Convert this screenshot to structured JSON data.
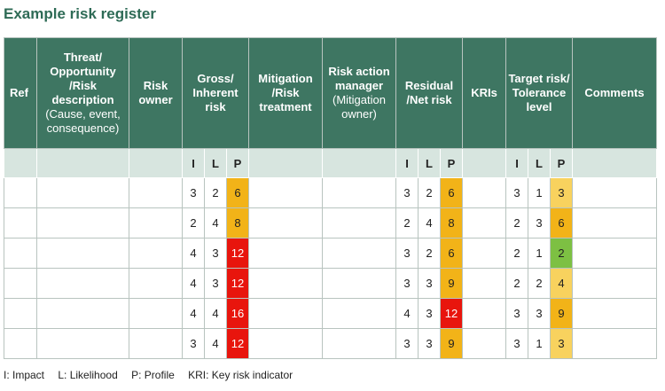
{
  "title": "Example risk register",
  "headers": {
    "ref": "Ref",
    "threat_bold": "Threat/ Opportunity /Risk description",
    "threat_light": "(Cause, event, consequence)",
    "owner": "Risk owner",
    "gross": "Gross/ Inherent risk",
    "mitigation": "Mitigation /Risk treatment",
    "manager_bold": "Risk action manager",
    "manager_light": "(Mitigation owner)",
    "residual": "Residual /Net risk",
    "kris": "KRIs",
    "target": "Target risk/ Tolerance level",
    "comments": "Comments"
  },
  "sub_labels": {
    "i": "I",
    "l": "L",
    "p": "P"
  },
  "rows": [
    {
      "gross": [
        "3",
        "2",
        "6"
      ],
      "residual": [
        "3",
        "2",
        "6"
      ],
      "target": [
        "3",
        "1",
        "3"
      ]
    },
    {
      "gross": [
        "2",
        "4",
        "8"
      ],
      "residual": [
        "2",
        "4",
        "8"
      ],
      "target": [
        "2",
        "3",
        "6"
      ]
    },
    {
      "gross": [
        "4",
        "3",
        "12"
      ],
      "residual": [
        "3",
        "2",
        "6"
      ],
      "target": [
        "2",
        "1",
        "2"
      ]
    },
    {
      "gross": [
        "4",
        "3",
        "12"
      ],
      "residual": [
        "3",
        "3",
        "9"
      ],
      "target": [
        "2",
        "2",
        "4"
      ]
    },
    {
      "gross": [
        "4",
        "4",
        "16"
      ],
      "residual": [
        "4",
        "3",
        "12"
      ],
      "target": [
        "3",
        "3",
        "9"
      ]
    },
    {
      "gross": [
        "3",
        "4",
        "12"
      ],
      "residual": [
        "3",
        "3",
        "9"
      ],
      "target": [
        "3",
        "1",
        "3"
      ]
    }
  ],
  "colors": {
    "header_green": "#3e7662",
    "subheader_green": "#d7e5df",
    "amber": "#f2b318",
    "red": "#e8150d",
    "yellow": "#f8d25e",
    "green": "#7dc043"
  },
  "legend": {
    "impact": "I: Impact",
    "likelihood": "L: Likelihood",
    "profile": "P: Profile",
    "kri": "KRI: Key risk indicator"
  }
}
